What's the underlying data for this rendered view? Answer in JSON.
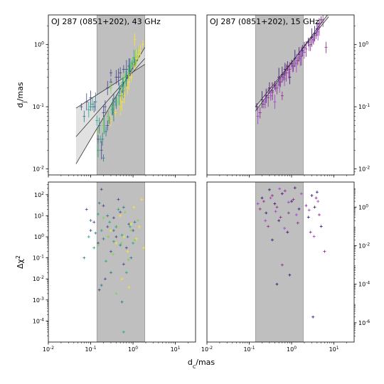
{
  "chart_data": [
    {
      "type": "scatter",
      "title": "OJ 287 (0851+202), 43 GHz",
      "xscale": "log",
      "yscale": "log",
      "xlim": [
        0.01,
        30
      ],
      "ylim": [
        0.008,
        3
      ],
      "xlabel": "",
      "ylabel": "d_j/mas",
      "xticks": [],
      "yticks": [
        "10^{-2}",
        "10^{-1}",
        "10^{0}"
      ],
      "ytick_side": "left",
      "shaded_x": [
        0.14,
        1.9
      ],
      "fit_lines": [
        {
          "x": [
            0.045,
            1.9
          ],
          "y": [
            0.012,
            0.9
          ]
        },
        {
          "x": [
            0.045,
            1.9
          ],
          "y": [
            0.033,
            0.6
          ]
        },
        {
          "x": [
            0.045,
            1.9
          ],
          "y": [
            0.095,
            0.48
          ]
        }
      ],
      "series": [
        {
          "color": "#414487",
          "x": [
            0.06,
            0.08,
            0.1,
            0.12,
            0.15,
            0.18,
            0.2,
            0.22,
            0.25,
            0.3,
            0.35,
            0.4,
            0.5,
            0.6,
            0.7,
            0.8,
            1.0,
            1.2,
            0.3,
            0.45,
            0.25,
            0.55,
            0.9
          ],
          "y": [
            0.1,
            0.12,
            0.14,
            0.1,
            0.03,
            0.02,
            0.08,
            0.1,
            0.05,
            0.25,
            0.12,
            0.3,
            0.35,
            0.4,
            0.4,
            0.45,
            0.5,
            0.55,
            0.35,
            0.3,
            0.2,
            0.15,
            0.38
          ]
        },
        {
          "color": "#2a788e",
          "x": [
            0.07,
            0.1,
            0.13,
            0.16,
            0.19,
            0.23,
            0.28,
            0.33,
            0.4,
            0.48,
            0.58,
            0.7,
            0.85,
            1.0,
            1.1,
            0.2,
            0.35,
            0.6
          ],
          "y": [
            0.07,
            0.1,
            0.12,
            0.05,
            0.03,
            0.04,
            0.06,
            0.1,
            0.12,
            0.2,
            0.25,
            0.3,
            0.45,
            0.5,
            0.52,
            0.015,
            0.08,
            0.18
          ]
        },
        {
          "color": "#22a884",
          "x": [
            0.09,
            0.11,
            0.14,
            0.17,
            0.21,
            0.26,
            0.32,
            0.39,
            0.47,
            0.57,
            0.68,
            0.82,
            0.95,
            1.05,
            0.15,
            0.5
          ],
          "y": [
            0.09,
            0.11,
            0.06,
            0.03,
            0.05,
            0.07,
            0.09,
            0.12,
            0.15,
            0.22,
            0.3,
            0.4,
            0.5,
            0.6,
            0.02,
            0.1
          ]
        },
        {
          "color": "#7ad151",
          "x": [
            0.15,
            0.2,
            0.26,
            0.34,
            0.42,
            0.53,
            0.65,
            0.78,
            0.9,
            1.0,
            1.15,
            1.3,
            0.3,
            0.6
          ],
          "y": [
            0.04,
            0.05,
            0.07,
            0.1,
            0.12,
            0.18,
            0.25,
            0.35,
            0.45,
            0.55,
            0.6,
            0.7,
            0.2,
            0.3
          ]
        },
        {
          "color": "#fde725",
          "x": [
            0.3,
            0.38,
            0.5,
            0.62,
            0.75,
            0.9,
            1.05,
            1.2,
            1.35,
            1.5,
            1.7,
            0.55,
            0.8,
            1.1
          ],
          "y": [
            0.06,
            0.08,
            0.1,
            0.15,
            0.2,
            0.3,
            0.45,
            0.6,
            0.7,
            0.8,
            1.0,
            0.12,
            0.25,
            1.2
          ]
        }
      ]
    },
    {
      "type": "scatter",
      "title": "OJ 287 (0851+202), 15 GHz",
      "xscale": "log",
      "yscale": "log",
      "xlim": [
        0.01,
        30
      ],
      "ylim": [
        0.008,
        3
      ],
      "xlabel": "",
      "ylabel": "",
      "xticks": [],
      "yticks": [
        "10^{-2}",
        "10^{-1}",
        "10^{0}"
      ],
      "ytick_side": "right",
      "shaded_x": [
        0.14,
        1.9
      ],
      "fit_lines": [
        {
          "x": [
            0.14,
            7.5
          ],
          "y": [
            0.085,
            3.2
          ]
        },
        {
          "x": [
            0.14,
            7.5
          ],
          "y": [
            0.1,
            2.8
          ]
        }
      ],
      "series": [
        {
          "color": "#3b0f70",
          "x": [
            0.15,
            0.2,
            0.25,
            0.3,
            0.4,
            0.5,
            0.6,
            0.7,
            0.8,
            1.0,
            1.2,
            1.5,
            2.0,
            2.5,
            3.0,
            3.5,
            4.0,
            4.5,
            5.0,
            0.35,
            0.9,
            1.8
          ],
          "y": [
            0.1,
            0.13,
            0.15,
            0.2,
            0.22,
            0.3,
            0.33,
            0.4,
            0.45,
            0.5,
            0.6,
            0.7,
            0.9,
            1.1,
            1.3,
            1.5,
            1.8,
            2.2,
            2.5,
            0.18,
            0.3,
            0.8
          ]
        },
        {
          "color": "#8c2981",
          "x": [
            0.18,
            0.22,
            0.28,
            0.35,
            0.45,
            0.55,
            0.65,
            0.75,
            0.9,
            1.1,
            1.4,
            1.7,
            2.2,
            2.8,
            3.3,
            3.8,
            4.5,
            5.5,
            6.5,
            0.6
          ],
          "y": [
            0.08,
            0.11,
            0.14,
            0.17,
            0.2,
            0.25,
            0.3,
            0.35,
            0.4,
            0.45,
            0.55,
            0.65,
            0.85,
            1.0,
            1.2,
            1.4,
            1.9,
            2.5,
            0.9,
            0.15
          ]
        },
        {
          "color": "#9d3fd0",
          "x": [
            0.16,
            0.24,
            0.32,
            0.42,
            0.52,
            0.68,
            0.85,
            1.05,
            1.3,
            1.6,
            2.0,
            2.6,
            3.2,
            4.2,
            0.4
          ],
          "y": [
            0.07,
            0.12,
            0.15,
            0.2,
            0.23,
            0.28,
            0.35,
            0.42,
            0.5,
            0.6,
            0.75,
            0.95,
            1.2,
            1.6,
            0.12
          ]
        }
      ]
    },
    {
      "type": "scatter",
      "title": "",
      "xscale": "log",
      "yscale": "log",
      "xlim": [
        0.01,
        30
      ],
      "ylim": [
        1e-05,
        400
      ],
      "xlabel": "d_c/mas",
      "ylabel": "Δχ^2",
      "xticks": [
        "10^{-2}",
        "10^{-1}",
        "10^{0}",
        "10^{1}"
      ],
      "yticks": [
        "10^{-4}",
        "10^{-3}",
        "10^{-2}",
        "10^{-1}",
        "10^{0}",
        "10^{1}",
        "10^{2}"
      ],
      "ytick_side": "left",
      "shaded_x": [
        0.14,
        1.9
      ],
      "fit_lines": [],
      "series": [
        {
          "color": "#414487",
          "x": [
            0.08,
            0.1,
            0.12,
            0.15,
            0.18,
            0.2,
            0.25,
            0.3,
            0.35,
            0.4,
            0.5,
            0.6,
            0.8,
            1.0,
            0.22,
            0.45,
            0.7,
            0.16
          ],
          "y": [
            20,
            2,
            5,
            0.5,
            180,
            30,
            3,
            0.2,
            8,
            1,
            15,
            0.05,
            4,
            2,
            0.01,
            60,
            0.3,
            0.003
          ]
        },
        {
          "color": "#2a788e",
          "x": [
            0.07,
            0.1,
            0.13,
            0.16,
            0.2,
            0.25,
            0.3,
            0.4,
            0.5,
            0.6,
            0.75,
            0.9,
            1.1,
            0.18,
            0.35,
            0.55
          ],
          "y": [
            0.1,
            6,
            1.5,
            40,
            0.8,
            10,
            0.02,
            3,
            0.4,
            25,
            1,
            0.1,
            5,
            0.005,
            2,
            0.0008
          ]
        },
        {
          "color": "#22a884",
          "x": [
            0.09,
            0.12,
            0.15,
            0.18,
            0.23,
            0.28,
            0.35,
            0.45,
            0.55,
            0.7,
            0.85,
            1.0,
            0.6
          ],
          "y": [
            1,
            0.3,
            12,
            2,
            0.07,
            5,
            0.6,
            20,
            1.2,
            0.02,
            3,
            0.5,
            3e-05
          ]
        },
        {
          "color": "#7ad151",
          "x": [
            0.15,
            0.2,
            0.26,
            0.34,
            0.42,
            0.53,
            0.65,
            0.78,
            0.9,
            1.1,
            1.3,
            0.4
          ],
          "y": [
            0.4,
            8,
            1,
            0.15,
            3,
            0.5,
            15,
            0.08,
            2,
            0.7,
            6,
            0.002
          ]
        },
        {
          "color": "#fde725",
          "x": [
            0.3,
            0.4,
            0.5,
            0.62,
            0.75,
            0.9,
            1.05,
            1.2,
            1.4,
            1.6,
            1.8,
            0.55,
            0.8
          ],
          "y": [
            2,
            0.5,
            10,
            1,
            0.2,
            4,
            25,
            0.8,
            3,
            60,
            0.3,
            0.01,
            0.004
          ]
        }
      ]
    },
    {
      "type": "scatter",
      "title": "",
      "xscale": "log",
      "yscale": "log",
      "xlim": [
        0.01,
        30
      ],
      "ylim": [
        1e-07,
        20
      ],
      "xlabel": "",
      "ylabel": "",
      "xticks": [
        "10^{-2}",
        "10^{-1}",
        "10^{0}",
        "10^{1}"
      ],
      "yticks": [
        "10^{-6}",
        "10^{-4}",
        "10^{-2}",
        "10^{0}"
      ],
      "ytick_side": "right",
      "shaded_x": [
        0.14,
        1.9
      ],
      "fit_lines": [],
      "series": [
        {
          "color": "#3b0f70",
          "x": [
            0.2,
            0.25,
            0.3,
            0.4,
            0.5,
            0.6,
            0.8,
            1.0,
            1.2,
            1.5,
            2.5,
            3.0,
            3.5,
            4.0,
            5.0,
            0.45,
            0.9,
            3.2,
            0.35
          ],
          "y": [
            3,
            0.5,
            8,
            1.5,
            0.2,
            5,
            0.05,
            2,
            10,
            0.8,
            0.3,
            4,
            1,
            6,
            0.1,
            0.0001,
            0.0003,
            2e-06,
            0.02
          ]
        },
        {
          "color": "#8c2981",
          "x": [
            0.18,
            0.22,
            0.28,
            0.35,
            0.45,
            0.55,
            0.7,
            0.85,
            1.1,
            1.4,
            2.2,
            2.8,
            3.8,
            4.5,
            6.0,
            0.6
          ],
          "y": [
            0.8,
            2,
            0.1,
            4,
            1,
            0.3,
            7,
            0.5,
            2.5,
            0.15,
            1.2,
            0.05,
            3,
            0.4,
            0.005,
            0.001
          ]
        },
        {
          "color": "#9d3fd0",
          "x": [
            0.16,
            0.24,
            0.32,
            0.42,
            0.52,
            0.68,
            0.85,
            1.3,
            1.7,
            2.6,
            3.4,
            4.2
          ],
          "y": [
            1.5,
            0.2,
            3,
            0.6,
            9,
            0.08,
            1.8,
            0.4,
            5,
            0.7,
            0.03,
            2
          ]
        }
      ]
    }
  ]
}
